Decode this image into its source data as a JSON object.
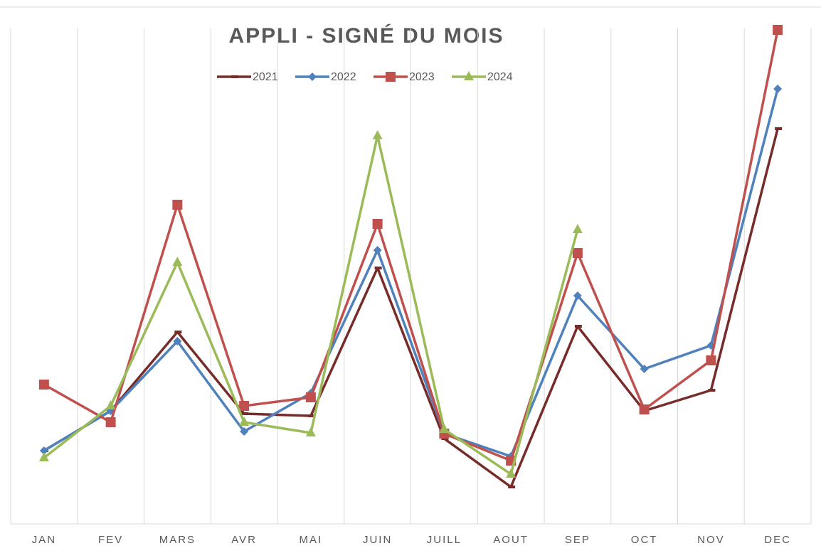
{
  "chart_data": {
    "type": "line",
    "title": "APPLI - SIGNÉ DU MOIS",
    "categories": [
      "JAN",
      "FEV",
      "MARS",
      "AVR",
      "MAI",
      "JUIN",
      "JUILL",
      "AOUT",
      "SEP",
      "OCT",
      "NOV",
      "DEC"
    ],
    "series": [
      {
        "name": "2021",
        "color": "#772c2a",
        "marker": "dash",
        "values": [
          103,
          159,
          270,
          155,
          152,
          360,
          120,
          52,
          278,
          159,
          188,
          556
        ]
      },
      {
        "name": "2022",
        "color": "#4f81bd",
        "marker": "diamond",
        "values": [
          103,
          159,
          257,
          130,
          184,
          385,
          127,
          95,
          321,
          218,
          251,
          612
        ]
      },
      {
        "name": "2023",
        "color": "#c0504d",
        "marker": "square",
        "values": [
          196,
          143,
          449,
          166,
          178,
          422,
          127,
          89,
          381,
          161,
          230,
          695
        ]
      },
      {
        "name": "2024",
        "color": "#9bbb59",
        "marker": "triangle",
        "values": [
          93,
          166,
          368,
          143,
          128,
          546,
          133,
          70,
          414,
          null,
          null,
          null
        ]
      }
    ],
    "ylim": [
      0,
      697
    ],
    "legend": "top"
  }
}
